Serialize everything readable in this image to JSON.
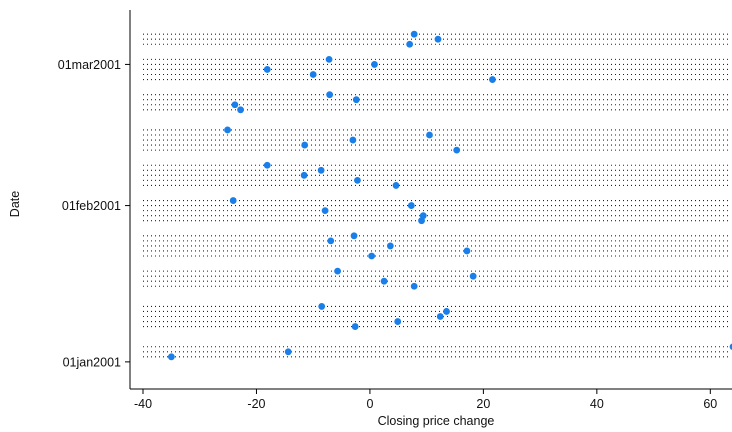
{
  "chart_data": {
    "type": "scatter",
    "orientation": "horizontal-dot-plot",
    "xlabel": "Closing price change",
    "ylabel": "Date",
    "xlim": [
      -40,
      64
    ],
    "xticks": [
      -40,
      -20,
      0,
      20,
      40,
      60
    ],
    "ylim": [
      "2000-12-29",
      "2001-03-11"
    ],
    "yticks": [
      {
        "date": "2001-01-01",
        "label": "01jan2001"
      },
      {
        "date": "2001-02-01",
        "label": "01feb2001"
      },
      {
        "date": "2001-03-01",
        "label": "01mar2001"
      }
    ],
    "grid": "dotted horizontal lines at trading days",
    "marker_color": "#1a7fe8",
    "points": [
      {
        "date": "2001-01-02",
        "value": -35.0
      },
      {
        "date": "2001-01-03",
        "value": -14.4
      },
      {
        "date": "2001-01-04",
        "value": 64.0
      },
      {
        "date": "2001-01-08",
        "value": -2.6
      },
      {
        "date": "2001-01-09",
        "value": 4.9
      },
      {
        "date": "2001-01-10",
        "value": 12.4
      },
      {
        "date": "2001-01-11",
        "value": 13.5
      },
      {
        "date": "2001-01-12",
        "value": -8.5
      },
      {
        "date": "2001-01-16",
        "value": 7.8
      },
      {
        "date": "2001-01-17",
        "value": 2.5
      },
      {
        "date": "2001-01-18",
        "value": 18.2
      },
      {
        "date": "2001-01-19",
        "value": -5.7
      },
      {
        "date": "2001-01-22",
        "value": 0.3
      },
      {
        "date": "2001-01-23",
        "value": 17.1
      },
      {
        "date": "2001-01-24",
        "value": 3.6
      },
      {
        "date": "2001-01-25",
        "value": -6.9
      },
      {
        "date": "2001-01-26",
        "value": -2.8
      },
      {
        "date": "2001-01-29",
        "value": 9.1
      },
      {
        "date": "2001-01-30",
        "value": 9.4
      },
      {
        "date": "2001-01-31",
        "value": -7.9
      },
      {
        "date": "2001-02-01",
        "value": 7.3
      },
      {
        "date": "2001-02-02",
        "value": -24.1
      },
      {
        "date": "2001-02-05",
        "value": 4.6
      },
      {
        "date": "2001-02-06",
        "value": -2.2
      },
      {
        "date": "2001-02-07",
        "value": -11.6
      },
      {
        "date": "2001-02-08",
        "value": -8.6
      },
      {
        "date": "2001-02-09",
        "value": -18.1
      },
      {
        "date": "2001-02-12",
        "value": 15.3
      },
      {
        "date": "2001-02-13",
        "value": -11.5
      },
      {
        "date": "2001-02-14",
        "value": -3.0
      },
      {
        "date": "2001-02-15",
        "value": 10.5
      },
      {
        "date": "2001-02-16",
        "value": -25.1
      },
      {
        "date": "2001-02-20",
        "value": -22.8
      },
      {
        "date": "2001-02-21",
        "value": -23.8
      },
      {
        "date": "2001-02-22",
        "value": -2.4
      },
      {
        "date": "2001-02-23",
        "value": -7.1
      },
      {
        "date": "2001-02-26",
        "value": 21.6
      },
      {
        "date": "2001-02-27",
        "value": -10.0
      },
      {
        "date": "2001-02-28",
        "value": -18.1
      },
      {
        "date": "2001-03-01",
        "value": 0.8
      },
      {
        "date": "2001-03-02",
        "value": -7.2
      },
      {
        "date": "2001-03-05",
        "value": 7.0
      },
      {
        "date": "2001-03-06",
        "value": 12.0
      },
      {
        "date": "2001-03-07",
        "value": 7.8
      }
    ]
  }
}
